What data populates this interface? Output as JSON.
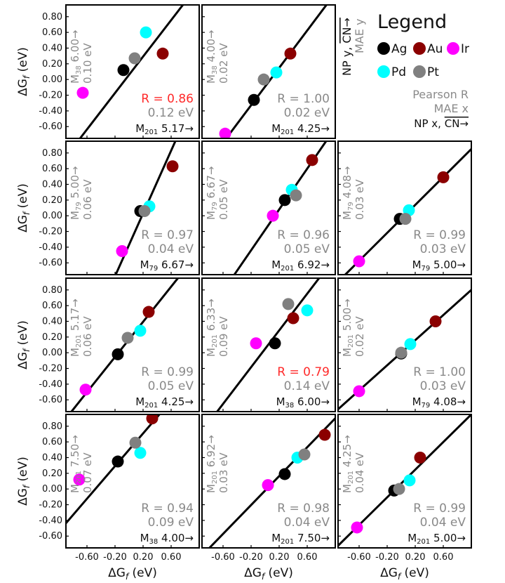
{
  "legend": {
    "title": "Legend",
    "items": [
      {
        "name": "Ag",
        "color": "#000000"
      },
      {
        "name": "Au",
        "color": "#8b0000"
      },
      {
        "name": "Ir",
        "color": "#ff00ff"
      },
      {
        "name": "Pd",
        "color": "#00ffff"
      },
      {
        "name": "Pt",
        "color": "#808080"
      }
    ],
    "np_y": "NP y,",
    "cn_y": "CN→",
    "mae_y": "MAE y",
    "pearson": "Pearson R",
    "mae_x": "MAE x",
    "np_x": "NP x,",
    "cn_x": "CN→"
  },
  "axes": {
    "ylabel": "ΔG",
    "ysub": "f",
    "yunit": " (eV)",
    "xlabel": "ΔG",
    "xsub": "f",
    "xunit": " (eV)",
    "yticks": [
      "0.80",
      "0.60",
      "0.40",
      "0.20",
      "0.00",
      "-0.20",
      "-0.40",
      "-0.60"
    ],
    "xticks": [
      "-0.60",
      "-0.20",
      "0.20",
      "0.60"
    ]
  },
  "chart_data": [
    {
      "type": "scatter",
      "row": 0,
      "col": 0,
      "y_np": "M38",
      "y_cn": "6.00",
      "y_mae": "0.10 eV",
      "R": "R = 0.86",
      "R_flag": "red",
      "x_mae": "0.12 eV",
      "x_np": "M201",
      "x_cn": "5.17",
      "line": {
        "slope": 1.16,
        "intercept": 0.06
      },
      "points": [
        {
          "metal": "Ag",
          "x": -0.08,
          "y": 0.12
        },
        {
          "metal": "Au",
          "x": 0.48,
          "y": 0.33
        },
        {
          "metal": "Ir",
          "x": -0.66,
          "y": -0.17
        },
        {
          "metal": "Pd",
          "x": 0.24,
          "y": 0.6
        },
        {
          "metal": "Pt",
          "x": 0.08,
          "y": 0.27
        }
      ]
    },
    {
      "type": "scatter",
      "row": 0,
      "col": 1,
      "y_np": "M38",
      "y_cn": "4.00",
      "y_mae": "0.02 eV",
      "R": "R = 1.00",
      "R_flag": "gray",
      "x_mae": "0.02 eV",
      "x_np": "M201",
      "x_cn": "4.25",
      "line": {
        "slope": 1.19,
        "intercept": -0.09
      },
      "points": [
        {
          "metal": "Ag",
          "x": -0.16,
          "y": -0.26
        },
        {
          "metal": "Au",
          "x": 0.36,
          "y": 0.33
        },
        {
          "metal": "Ir",
          "x": -0.57,
          "y": -0.69
        },
        {
          "metal": "Pd",
          "x": 0.16,
          "y": 0.09
        },
        {
          "metal": "Pt",
          "x": -0.02,
          "y": 0.0
        }
      ]
    },
    {
      "type": "scatter",
      "row": 1,
      "col": 0,
      "y_np": "M79",
      "y_cn": "5.00",
      "y_mae": "0.06 eV",
      "R": "R = 0.97",
      "R_flag": "gray",
      "x_mae": "0.04 eV",
      "x_np": "M79",
      "x_cn": "6.67",
      "line": {
        "slope": 2.0,
        "intercept": -0.37
      },
      "points": [
        {
          "metal": "Ag",
          "x": 0.16,
          "y": 0.06
        },
        {
          "metal": "Au",
          "x": 0.62,
          "y": 0.63
        },
        {
          "metal": "Ir",
          "x": -0.1,
          "y": -0.45
        },
        {
          "metal": "Pd",
          "x": 0.29,
          "y": 0.12
        },
        {
          "metal": "Pt",
          "x": 0.22,
          "y": 0.06
        }
      ]
    },
    {
      "type": "scatter",
      "row": 1,
      "col": 1,
      "y_np": "M79",
      "y_cn": "6.67",
      "y_mae": "0.05 eV",
      "R": "R = 0.96",
      "R_flag": "gray",
      "x_mae": "0.05 eV",
      "x_np": "M201",
      "x_cn": "6.92",
      "line": {
        "slope": 1.3,
        "intercept": -0.18
      },
      "points": [
        {
          "metal": "Ag",
          "x": 0.28,
          "y": 0.2
        },
        {
          "metal": "Au",
          "x": 0.67,
          "y": 0.71
        },
        {
          "metal": "Ir",
          "x": 0.11,
          "y": 0.0
        },
        {
          "metal": "Pd",
          "x": 0.38,
          "y": 0.33
        },
        {
          "metal": "Pt",
          "x": 0.44,
          "y": 0.26
        }
      ]
    },
    {
      "type": "scatter",
      "row": 1,
      "col": 2,
      "y_np": "M79",
      "y_cn": "4.08",
      "y_mae": "0.03 eV",
      "R": "R = 0.99",
      "R_flag": "gray",
      "x_mae": "0.03 eV",
      "x_np": "M79",
      "x_cn": "5.00",
      "line": {
        "slope": 0.89,
        "intercept": -0.04
      },
      "points": [
        {
          "metal": "Ag",
          "x": -0.02,
          "y": -0.04
        },
        {
          "metal": "Au",
          "x": 0.6,
          "y": 0.49
        },
        {
          "metal": "Ir",
          "x": -0.6,
          "y": -0.58
        },
        {
          "metal": "Pd",
          "x": 0.11,
          "y": 0.07
        },
        {
          "metal": "Pt",
          "x": 0.06,
          "y": -0.04
        }
      ]
    },
    {
      "type": "scatter",
      "row": 2,
      "col": 0,
      "y_np": "M201",
      "y_cn": "5.17",
      "y_mae": "0.06 eV",
      "R": "R = 0.99",
      "R_flag": "gray",
      "x_mae": "0.05 eV",
      "x_np": "M201",
      "x_cn": "4.25",
      "line": {
        "slope": 1.12,
        "intercept": 0.17
      },
      "points": [
        {
          "metal": "Ag",
          "x": -0.16,
          "y": -0.02
        },
        {
          "metal": "Au",
          "x": 0.28,
          "y": 0.52
        },
        {
          "metal": "Ir",
          "x": -0.62,
          "y": -0.47
        },
        {
          "metal": "Pd",
          "x": 0.16,
          "y": 0.28
        },
        {
          "metal": "Pt",
          "x": -0.02,
          "y": 0.19
        }
      ]
    },
    {
      "type": "scatter",
      "row": 2,
      "col": 1,
      "y_np": "M201",
      "y_cn": "6.33",
      "y_mae": "0.09 eV",
      "R": "R = 0.79",
      "R_flag": "red",
      "x_mae": "0.14 eV",
      "x_np": "M38",
      "x_cn": "6.00",
      "line": {
        "slope": 1.17,
        "intercept": 0.05
      },
      "points": [
        {
          "metal": "Ag",
          "x": 0.14,
          "y": 0.12
        },
        {
          "metal": "Au",
          "x": 0.4,
          "y": 0.44
        },
        {
          "metal": "Ir",
          "x": -0.13,
          "y": 0.12
        },
        {
          "metal": "Pd",
          "x": 0.6,
          "y": 0.54
        },
        {
          "metal": "Pt",
          "x": 0.33,
          "y": 0.62
        }
      ]
    },
    {
      "type": "scatter",
      "row": 2,
      "col": 2,
      "y_np": "M201",
      "y_cn": "5.00",
      "y_mae": "0.02 eV",
      "R": "R = 1.00",
      "R_flag": "gray",
      "x_mae": "0.03 eV",
      "x_np": "M79",
      "x_cn": "4.08",
      "line": {
        "slope": 0.8,
        "intercept": 0.0
      },
      "points": [
        {
          "metal": "Ag",
          "x": 0.0,
          "y": -0.01
        },
        {
          "metal": "Au",
          "x": 0.49,
          "y": 0.4
        },
        {
          "metal": "Ir",
          "x": -0.6,
          "y": -0.49
        },
        {
          "metal": "Pd",
          "x": 0.13,
          "y": 0.11
        },
        {
          "metal": "Pt",
          "x": 0.0,
          "y": 0.0
        }
      ]
    },
    {
      "type": "scatter",
      "row": 3,
      "col": 0,
      "y_np": "M201",
      "y_cn": "7.50",
      "y_mae": "0.07 eV",
      "R": "R = 0.94",
      "R_flag": "gray",
      "x_mae": "0.09 eV",
      "x_np": "M38",
      "x_cn": "4.00",
      "line": {
        "slope": 1.04,
        "intercept": 0.5
      },
      "points": [
        {
          "metal": "Ag",
          "x": -0.16,
          "y": 0.35
        },
        {
          "metal": "Au",
          "x": 0.33,
          "y": 0.9
        },
        {
          "metal": "Ir",
          "x": -0.71,
          "y": 0.12
        },
        {
          "metal": "Pd",
          "x": 0.16,
          "y": 0.46
        },
        {
          "metal": "Pt",
          "x": 0.09,
          "y": 0.59
        }
      ]
    },
    {
      "type": "scatter",
      "row": 3,
      "col": 1,
      "y_np": "M201",
      "y_cn": "6.92",
      "y_mae": "0.03 eV",
      "R": "R = 0.98",
      "R_flag": "gray",
      "x_mae": "0.04 eV",
      "x_np": "M201",
      "x_cn": "7.50",
      "line": {
        "slope": 0.92,
        "intercept": -0.02
      },
      "points": [
        {
          "metal": "Ag",
          "x": 0.28,
          "y": 0.19
        },
        {
          "metal": "Au",
          "x": 0.85,
          "y": 0.69
        },
        {
          "metal": "Ir",
          "x": 0.04,
          "y": 0.05
        },
        {
          "metal": "Pd",
          "x": 0.46,
          "y": 0.4
        },
        {
          "metal": "Pt",
          "x": 0.56,
          "y": 0.44
        }
      ]
    },
    {
      "type": "scatter",
      "row": 3,
      "col": 2,
      "y_np": "M201",
      "y_cn": "4.25",
      "y_mae": "0.04 eV",
      "R": "R = 0.99",
      "R_flag": "gray",
      "x_mae": "0.04 eV",
      "x_np": "M201",
      "x_cn": "5.00",
      "line": {
        "slope": 0.88,
        "intercept": 0.07
      },
      "points": [
        {
          "metal": "Ag",
          "x": -0.1,
          "y": -0.02
        },
        {
          "metal": "Au",
          "x": 0.27,
          "y": 0.4
        },
        {
          "metal": "Ir",
          "x": -0.63,
          "y": -0.49
        },
        {
          "metal": "Pd",
          "x": 0.12,
          "y": 0.11
        },
        {
          "metal": "Pt",
          "x": -0.03,
          "y": 0.0
        }
      ]
    }
  ]
}
